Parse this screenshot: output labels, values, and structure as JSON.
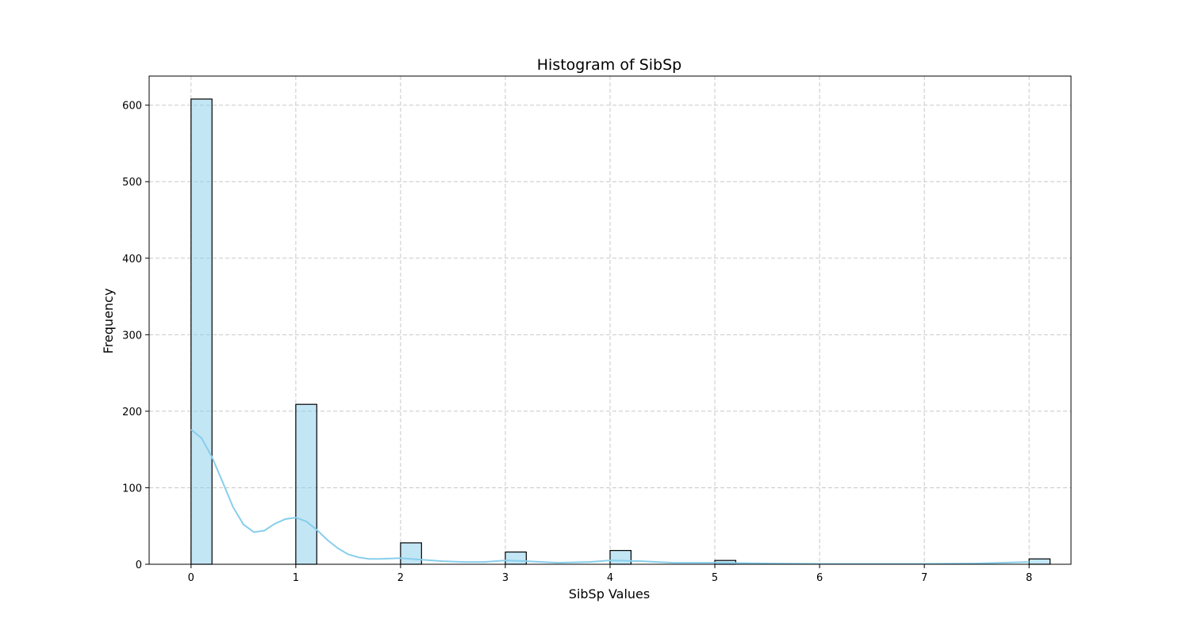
{
  "chart_data": {
    "type": "bar",
    "title": "Histogram of SibSp",
    "xlabel": "SibSp Values",
    "ylabel": "Frequency",
    "xlim": [
      -0.4,
      8.4
    ],
    "ylim": [
      0,
      638
    ],
    "xticks": [
      "0",
      "1",
      "2",
      "3",
      "4",
      "5",
      "6",
      "7",
      "8"
    ],
    "yticks": [
      "0",
      "100",
      "200",
      "300",
      "400",
      "500",
      "600"
    ],
    "grid": true,
    "bin_width": 0.2,
    "bins": [
      {
        "x": 0,
        "value": 608
      },
      {
        "x": 1,
        "value": 209
      },
      {
        "x": 2,
        "value": 28
      },
      {
        "x": 3,
        "value": 16
      },
      {
        "x": 4,
        "value": 18
      },
      {
        "x": 5,
        "value": 5
      },
      {
        "x": 8,
        "value": 7
      }
    ],
    "kde": {
      "name": "KDE",
      "x": [
        0,
        0.1,
        0.2,
        0.3,
        0.4,
        0.5,
        0.6,
        0.7,
        0.8,
        0.9,
        1.0,
        1.1,
        1.2,
        1.3,
        1.4,
        1.5,
        1.6,
        1.7,
        1.8,
        2.0,
        2.2,
        2.4,
        2.6,
        2.8,
        3.0,
        3.2,
        3.5,
        3.8,
        4.0,
        4.3,
        4.6,
        5.0,
        5.5,
        6.0,
        6.5,
        7.0,
        7.5,
        8.0
      ],
      "y": [
        176,
        165,
        140,
        108,
        75,
        52,
        42,
        44,
        53,
        59,
        61,
        56,
        45,
        32,
        21,
        13,
        9,
        7,
        7,
        8,
        6,
        4,
        3,
        3,
        5,
        4,
        2,
        3,
        5,
        4,
        2,
        2,
        1,
        0.5,
        0.5,
        0.5,
        1,
        3
      ]
    },
    "colors": {
      "bar_fill": "#87ceeb",
      "bar_edge": "#000000",
      "kde_line": "#87ceeb",
      "grid": "#c8c8c8"
    }
  }
}
